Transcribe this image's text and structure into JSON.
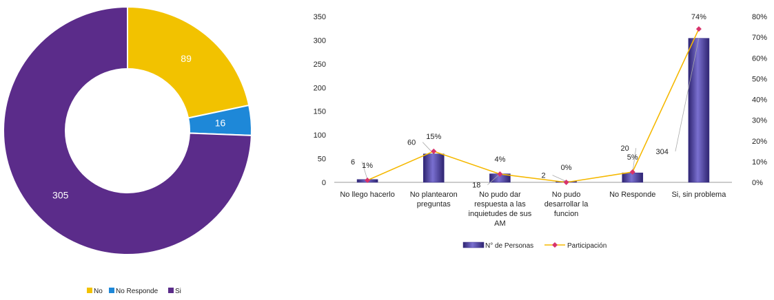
{
  "colors": {
    "no": "#F2C200",
    "no_responde": "#1E88D8",
    "si": "#5B2C8A",
    "bar": "#5A4FB0",
    "line": "#F5B800",
    "marker": "#D8336B"
  },
  "chart_data": [
    {
      "type": "pie",
      "variant": "donut",
      "categories": [
        "No",
        "No Responde",
        "Si"
      ],
      "values": [
        89,
        16,
        305
      ],
      "legend_position": "bottom-left"
    },
    {
      "type": "bar",
      "categories": [
        "No llego hacerlo",
        "No plantearon preguntas",
        "No pudo dar respuesta a las inquietudes de sus AM",
        "No pudo desarrollar la funcion",
        "No Responde",
        "Si, sin problema"
      ],
      "series": [
        {
          "name": "N° de Personas",
          "type": "bar",
          "axis": "left",
          "values": [
            6,
            60,
            18,
            2,
            20,
            304
          ],
          "labels": [
            "6",
            "60",
            "18",
            "2",
            "20",
            "304"
          ]
        },
        {
          "name": "Participación",
          "type": "line",
          "axis": "right",
          "values": [
            0.01,
            0.15,
            0.04,
            0.0,
            0.05,
            0.74
          ],
          "labels": [
            "1%",
            "15%",
            "4%",
            "0%",
            "5%",
            "74%"
          ]
        }
      ],
      "y_left": {
        "min": 0,
        "max": 350,
        "step": 50,
        "ticks": [
          "0",
          "50",
          "100",
          "150",
          "200",
          "250",
          "300",
          "350"
        ]
      },
      "y_right": {
        "min": 0,
        "max": 0.8,
        "step": 0.1,
        "ticks": [
          "0%",
          "10%",
          "20%",
          "30%",
          "40%",
          "50%",
          "60%",
          "70%",
          "80%"
        ]
      },
      "legend_position": "bottom-center",
      "grid": false
    }
  ]
}
